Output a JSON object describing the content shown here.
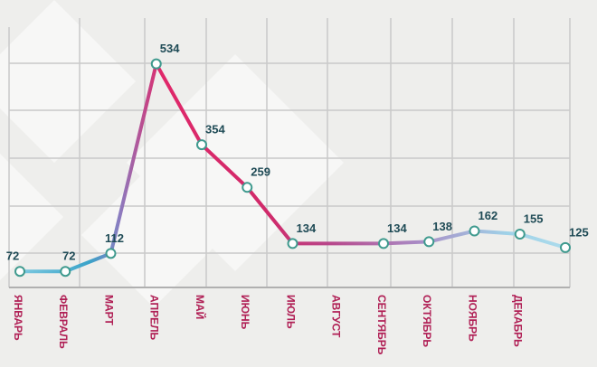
{
  "chart_data": {
    "type": "line",
    "categories": [
      "ЯНВАРЬ",
      "ФЕВРАЛЬ",
      "МАРТ",
      "АПРЕЛЬ",
      "МАЙ",
      "ИЮНЬ",
      "ИЮЛЬ",
      "АВГУСТ",
      "СЕНТЯБРЬ",
      "ОКТЯБРЬ",
      "НОЯБРЬ",
      "ДЕКАБРЬ",
      null
    ],
    "values": [
      72,
      72,
      112,
      534,
      354,
      259,
      134,
      134,
      134,
      138,
      162,
      155,
      125
    ],
    "value_labels": [
      "72",
      "72",
      "112",
      "534",
      "354",
      "259",
      "134",
      null,
      "134",
      "138",
      "162",
      "155",
      "125"
    ],
    "ylim": [
      0,
      640
    ]
  }
}
